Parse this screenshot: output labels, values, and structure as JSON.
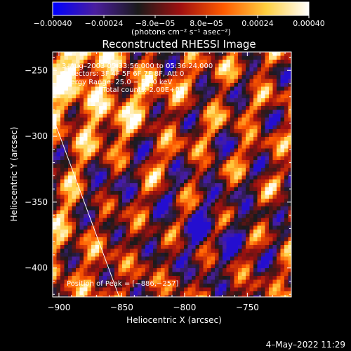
{
  "chart_data": {
    "type": "heatmap",
    "title": "Reconstructed RHESSI Image",
    "xlabel": "Heliocentric X (arcsec)",
    "ylabel": "Heliocentric Y (arcsec)",
    "xlim": [
      -905,
      -715
    ],
    "ylim": [
      -422,
      -236
    ],
    "xticks": [
      -900,
      -850,
      -800,
      -750
    ],
    "xtick_labels": [
      "−900",
      "−850",
      "−800",
      "−750"
    ],
    "yticks": [
      -250,
      -300,
      -350,
      -400
    ],
    "ytick_labels": [
      "−250",
      "−300",
      "−350",
      "−400"
    ],
    "colorbar": {
      "range": [
        -0.0004,
        0.0004
      ],
      "ticks": [
        -0.0004,
        -0.00024,
        -8e-05,
        8e-05,
        0.00024,
        0.0004
      ],
      "tick_labels": [
        "−0.00040",
        "−0.00024",
        "−8.0e−05",
        "8.0e−05",
        "0.00024",
        "0.00040"
      ],
      "unit_label": "(photons cm⁻² s⁻¹ asec⁻²)",
      "colormap": [
        "#0000ff",
        "#4a1e9e",
        "#1a1a1a",
        "#a01010",
        "#ff5a00",
        "#ffd040",
        "#ffffff"
      ]
    },
    "annotations": [
      "3–Aug–2003 05:33:56.000 to 05:36:24.000",
      "Detectors: 3F 4F 5F 6F 7F 8F, Att 0",
      "Energy Range: 25.0 − 50.0 keV",
      "Total counts: 2.00E+03",
      "Position of Peak = [−886,−257]"
    ],
    "limb_line": {
      "x": [
        -905,
        -852
      ],
      "y": [
        -285,
        -422
      ]
    },
    "peak": {
      "x": -886,
      "y": -257
    }
  },
  "timestamp": "4–May–2022 11:29"
}
